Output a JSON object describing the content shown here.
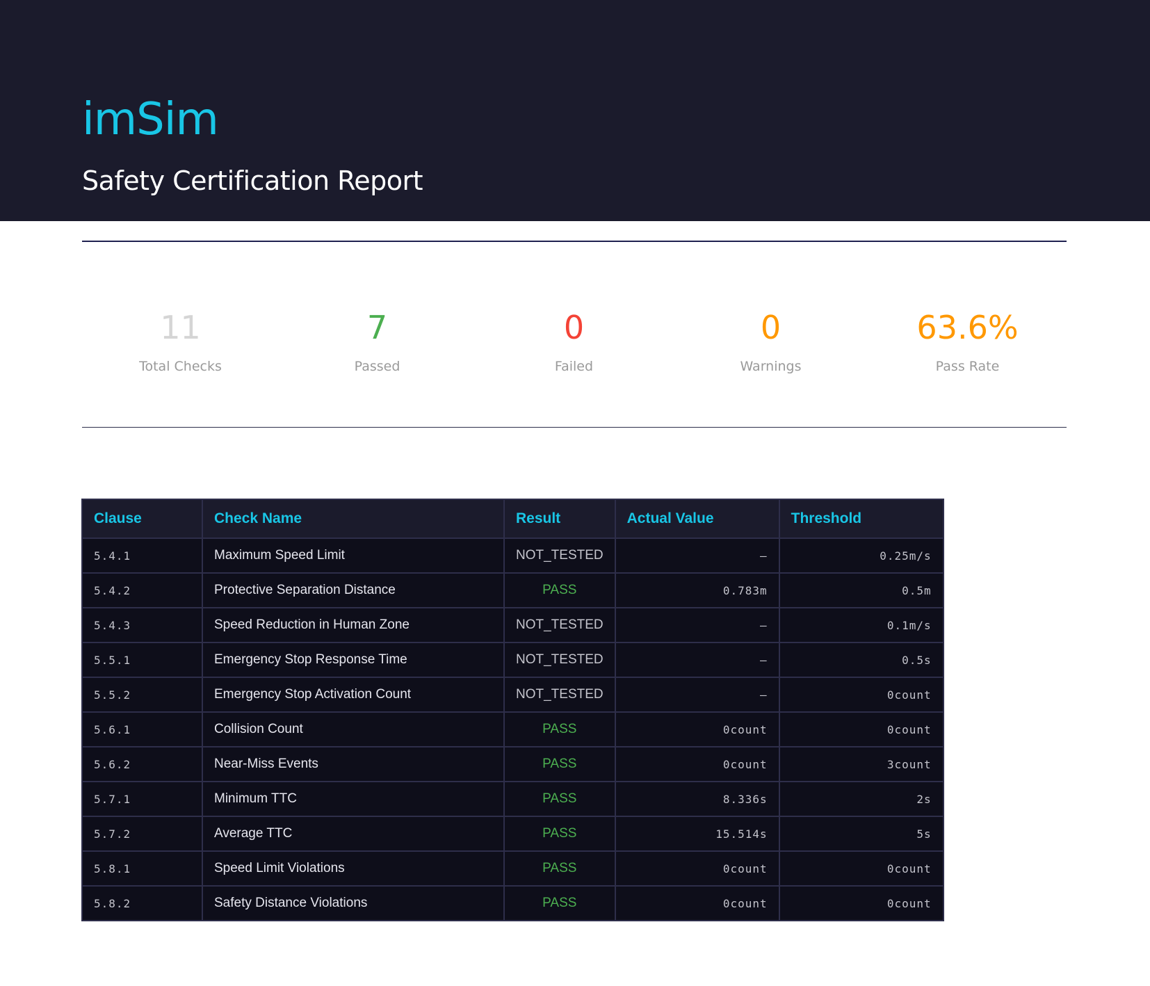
{
  "header": {
    "brand": "imSim",
    "title": "Safety Certification Report"
  },
  "stats": [
    {
      "value": "11",
      "label": "Total Checks",
      "color": "#d5d5d5"
    },
    {
      "value": "7",
      "label": "Passed",
      "color": "#4caf50"
    },
    {
      "value": "0",
      "label": "Failed",
      "color": "#f44336"
    },
    {
      "value": "0",
      "label": "Warnings",
      "color": "#ff9800"
    },
    {
      "value": "63.6%",
      "label": "Pass Rate",
      "color": "#ff9800"
    }
  ],
  "table": {
    "columns": [
      "Clause",
      "Check Name",
      "Result",
      "Actual Value",
      "Threshold"
    ],
    "rows": [
      {
        "clause": "5.4.1",
        "name": "Maximum Speed Limit",
        "result": "NOT_TESTED",
        "actual": "–",
        "threshold": "0.25m/s"
      },
      {
        "clause": "5.4.2",
        "name": "Protective Separation Distance",
        "result": "PASS",
        "actual": "0.783m",
        "threshold": "0.5m"
      },
      {
        "clause": "5.4.3",
        "name": "Speed Reduction in Human Zone",
        "result": "NOT_TESTED",
        "actual": "–",
        "threshold": "0.1m/s"
      },
      {
        "clause": "5.5.1",
        "name": "Emergency Stop Response Time",
        "result": "NOT_TESTED",
        "actual": "–",
        "threshold": "0.5s"
      },
      {
        "clause": "5.5.2",
        "name": "Emergency Stop Activation Count",
        "result": "NOT_TESTED",
        "actual": "–",
        "threshold": "0count"
      },
      {
        "clause": "5.6.1",
        "name": "Collision Count",
        "result": "PASS",
        "actual": "0count",
        "threshold": "0count"
      },
      {
        "clause": "5.6.2",
        "name": "Near-Miss Events",
        "result": "PASS",
        "actual": "0count",
        "threshold": "3count"
      },
      {
        "clause": "5.7.1",
        "name": "Minimum TTC",
        "result": "PASS",
        "actual": "8.336s",
        "threshold": "2s"
      },
      {
        "clause": "5.7.2",
        "name": "Average TTC",
        "result": "PASS",
        "actual": "15.514s",
        "threshold": "5s"
      },
      {
        "clause": "5.8.1",
        "name": "Speed Limit Violations",
        "result": "PASS",
        "actual": "0count",
        "threshold": "0count"
      },
      {
        "clause": "5.8.2",
        "name": "Safety Distance Violations",
        "result": "PASS",
        "actual": "0count",
        "threshold": "0count"
      }
    ]
  }
}
